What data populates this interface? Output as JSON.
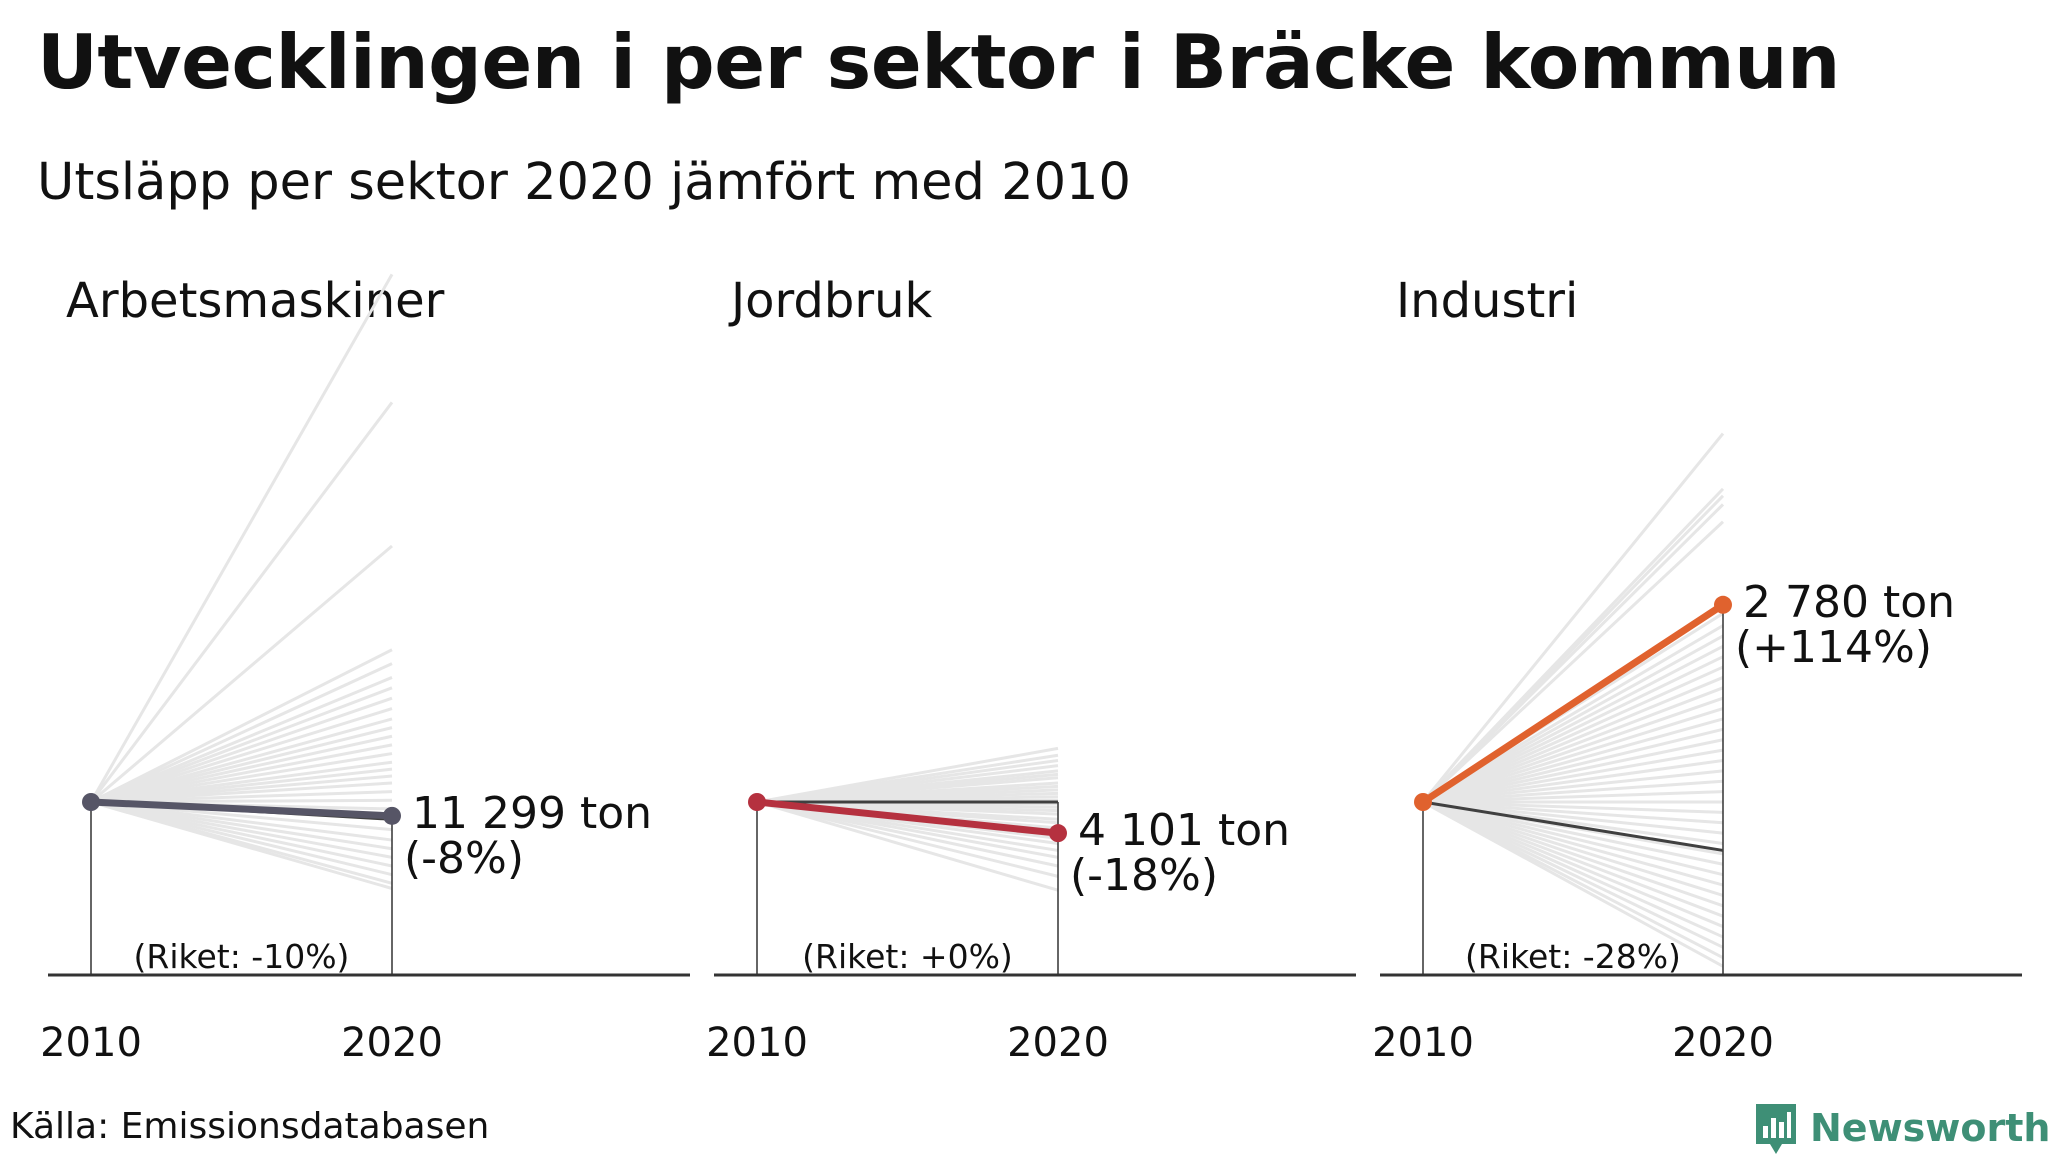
{
  "title": "Utvecklingen i per sektor i Bräcke kommun",
  "subtitle": "Utsläpp per sektor 2020 jämfört med 2010",
  "source": "Källa: Emissionsdatabasen",
  "brand": "Newsworthy",
  "colors": {
    "background_lines": "#e6e6e6",
    "national_line": "#404040",
    "axis": "#333333",
    "arbetsmaskiner": "#565566",
    "jordbruk": "#b5313f",
    "industri": "#e0622e",
    "brand": "#3e8f76"
  },
  "chart_data": [
    {
      "type": "line",
      "title": "Arbetsmaskiner",
      "x": [
        "2010",
        "2020"
      ],
      "series": [
        {
          "values": [
            100,
            92
          ],
          "color": "#565566"
        }
      ],
      "label_value": "11 299 ton",
      "label_change": "(-8%)",
      "national": "(Riket: -10%)",
      "national_change_pct": -10,
      "other_municipalities_index_2020": [
        405,
        331,
        248,
        188,
        180,
        172,
        166,
        160,
        154,
        148,
        143,
        138,
        133,
        128,
        123,
        119,
        115,
        111,
        106,
        101,
        96,
        90,
        84,
        78,
        73,
        68,
        63,
        58,
        53,
        50
      ],
      "ylim": [
        0,
        500
      ]
    },
    {
      "type": "line",
      "title": "Jordbruk",
      "x": [
        "2010",
        "2020"
      ],
      "series": [
        {
          "values": [
            100,
            82
          ],
          "color": "#b5313f"
        }
      ],
      "label_value": "4 101 ton",
      "label_change": "(-18%)",
      "national": "(Riket: +0%)",
      "national_change_pct": 0,
      "other_municipalities_index_2020": [
        131,
        127,
        124,
        121,
        118,
        116,
        114,
        111,
        109,
        107,
        105,
        103,
        101,
        99,
        97,
        95,
        93,
        90,
        88,
        85,
        82,
        79,
        76,
        72,
        68,
        63,
        57,
        49
      ],
      "ylim": [
        0,
        500
      ]
    },
    {
      "type": "line",
      "title": "Industri",
      "x": [
        "2010",
        "2020"
      ],
      "series": [
        {
          "values": [
            100,
            214
          ],
          "color": "#e0622e"
        }
      ],
      "label_value": "2 780 ton",
      "label_change": "(+114%)",
      "national": "(Riket: -28%)",
      "national_change_pct": -28,
      "other_municipalities_index_2020": [
        313,
        281,
        277,
        272,
        262,
        209,
        202,
        196,
        190,
        184,
        178,
        172,
        166,
        160,
        154,
        148,
        142,
        136,
        130,
        124,
        118,
        112,
        106,
        100,
        94,
        88,
        82,
        76,
        70,
        64,
        58,
        52,
        46,
        40,
        34,
        28,
        22,
        16,
        10,
        5
      ],
      "ylim": [
        0,
        500
      ]
    }
  ]
}
